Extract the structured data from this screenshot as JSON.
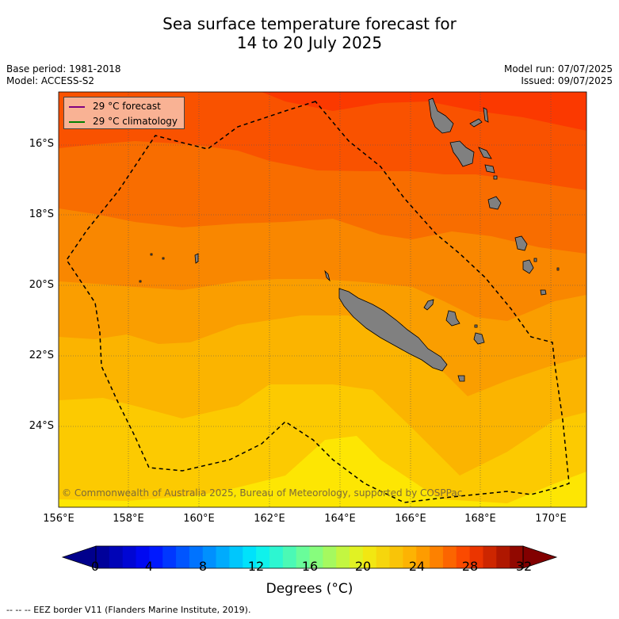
{
  "title_line1": "Sea surface temperature forecast for",
  "title_line2": "14 to 20 July 2025",
  "meta": {
    "base_period": "Base period: 1981-2018",
    "model": "Model: ACCESS-S2",
    "model_run": "Model run: 07/07/2025",
    "issued": "Issued: 09/07/2025"
  },
  "map": {
    "latitude_labels": [
      "16°S",
      "18°S",
      "20°S",
      "22°S",
      "24°S"
    ],
    "longitude_labels": [
      "156°E",
      "158°E",
      "160°E",
      "162°E",
      "164°E",
      "166°E",
      "168°E",
      "170°E"
    ],
    "lon_range": [
      156,
      171
    ],
    "lat_range": [
      -26.2,
      -14.4
    ]
  },
  "legend": {
    "forecast_label": "29 °C  forecast",
    "forecast_color": "#800080",
    "climatology_label": "29 °C  climatology",
    "climatology_color": "#008000"
  },
  "copyright": "© Commonwealth of Australia 2025, Bureau of Meteorology, supported by COSPPac",
  "colorbar": {
    "label": "Degrees (°C)",
    "ticks": [
      "0",
      "4",
      "8",
      "12",
      "16",
      "20",
      "24",
      "28",
      "32"
    ],
    "min": 0,
    "max": 32,
    "step": 1
  },
  "eez_note": "--  --  -- EEZ border V11 (Flanders Marine Institute, 2019).",
  "colors": {
    "land": "#808080",
    "c_21_22": "#fde603",
    "c_22_23": "#fcca01",
    "c_23_24": "#fbb400",
    "c_24_25": "#fa9e00",
    "c_25_26": "#f98700",
    "c_26_27": "#f86d00",
    "c_27_28": "#f95200",
    "c_28_29": "#fb3900"
  }
}
